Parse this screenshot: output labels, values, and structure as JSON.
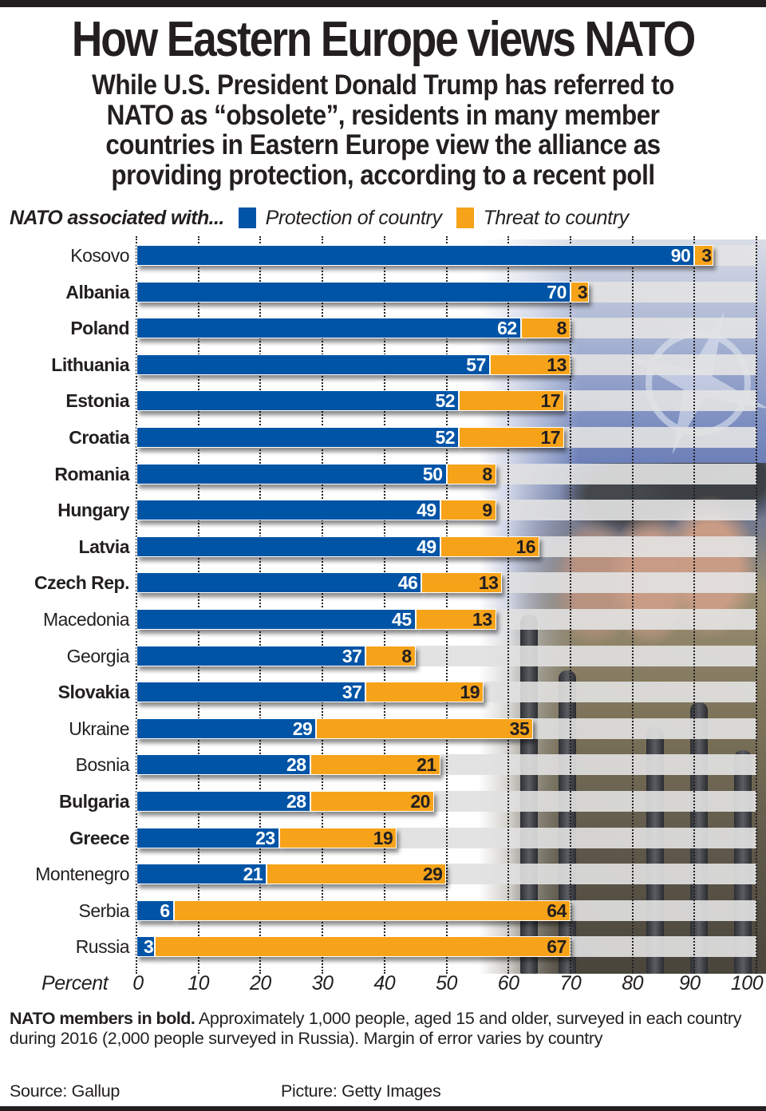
{
  "header": {
    "title": "How Eastern Europe views NATO",
    "subtitle_lines": [
      "While U.S. President Donald Trump has referred to",
      "NATO as “obsolete”, residents in many member",
      "countries in Eastern Europe view the alliance as",
      "providing protection, according to a recent poll"
    ]
  },
  "legend": {
    "lead": "NATO associated with...",
    "items": [
      {
        "label": "Protection of country",
        "color": "#0054a6"
      },
      {
        "label": "Threat to country",
        "color": "#f6a31a"
      }
    ]
  },
  "colors": {
    "protection": "#0054a6",
    "threat": "#f6a31a",
    "text": "#231f20"
  },
  "chart_data": {
    "type": "bar",
    "orientation": "horizontal",
    "stacked": true,
    "title": "How Eastern Europe views NATO",
    "xlabel": "Percent",
    "ylabel": "",
    "xlim": [
      0,
      100
    ],
    "xticks": [
      0,
      10,
      20,
      30,
      40,
      50,
      60,
      70,
      80,
      90,
      100
    ],
    "grid": true,
    "legend_placement": "top",
    "categories": [
      "Kosovo",
      "Albania",
      "Poland",
      "Lithuania",
      "Estonia",
      "Croatia",
      "Romania",
      "Hungary",
      "Latvia",
      "Czech Rep.",
      "Macedonia",
      "Georgia",
      "Slovakia",
      "Ukraine",
      "Bosnia",
      "Bulgaria",
      "Greece",
      "Montenegro",
      "Serbia",
      "Russia"
    ],
    "nato_member": [
      false,
      true,
      true,
      true,
      true,
      true,
      true,
      true,
      true,
      true,
      false,
      false,
      true,
      false,
      false,
      true,
      true,
      false,
      false,
      false
    ],
    "series": [
      {
        "name": "Protection of country",
        "color": "#0054a6",
        "values": [
          90,
          70,
          62,
          57,
          52,
          52,
          50,
          49,
          49,
          46,
          45,
          37,
          37,
          29,
          28,
          28,
          23,
          21,
          6,
          3
        ]
      },
      {
        "name": "Threat to country",
        "color": "#f6a31a",
        "values": [
          3,
          3,
          8,
          13,
          17,
          17,
          8,
          9,
          16,
          13,
          13,
          8,
          19,
          35,
          21,
          20,
          19,
          29,
          64,
          67
        ]
      }
    ]
  },
  "footer": {
    "note_bold": "NATO members in bold.",
    "note_text": " Approximately 1,000 people, aged 15 and older, surveyed in each country during 2016 (2,000 people surveyed in Russia). Margin of error varies by country",
    "source": "Source: Gallup",
    "picture": "Picture: Getty Images"
  }
}
